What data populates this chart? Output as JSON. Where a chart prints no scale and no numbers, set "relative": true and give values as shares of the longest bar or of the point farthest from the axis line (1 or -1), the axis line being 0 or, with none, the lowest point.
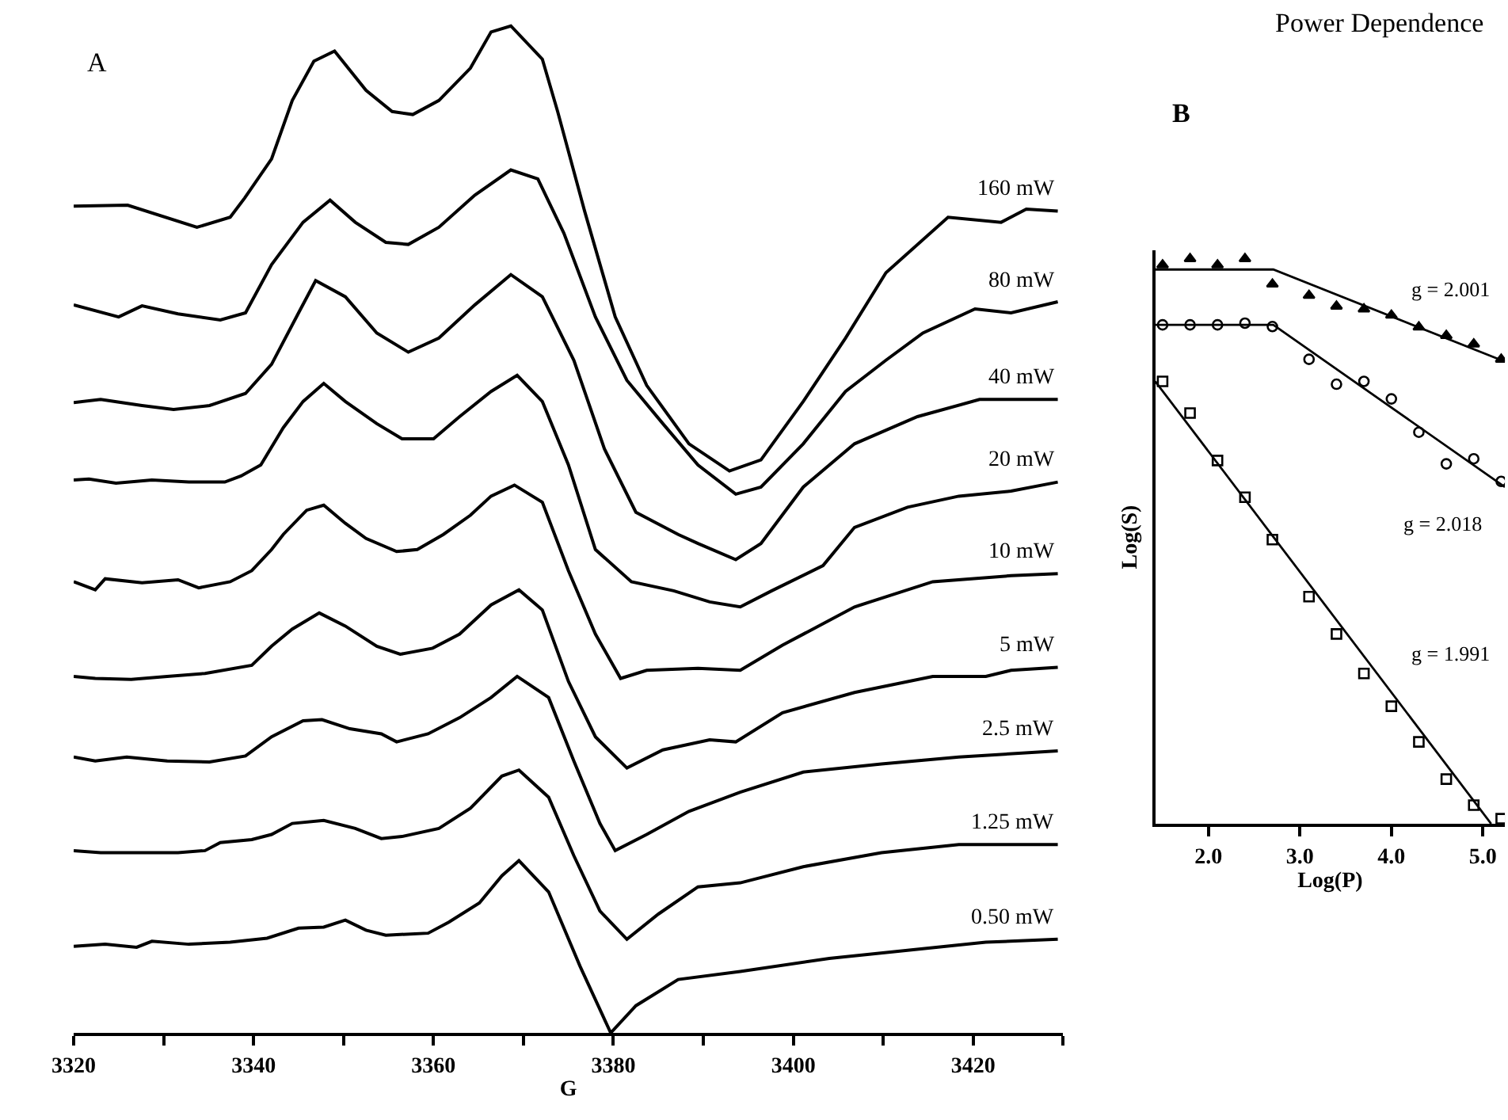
{
  "chart_data": [
    {
      "type": "line",
      "title": "A",
      "xlabel": "G",
      "relative": true,
      "line_style": "solid",
      "xlim": [
        3320,
        3430
      ],
      "xticks": [
        3320,
        {
          "value": 3330,
          "label": null
        },
        3340,
        {
          "value": 3350,
          "label": null
        },
        3360,
        {
          "value": 3370,
          "label": null
        },
        3380,
        {
          "value": 3390,
          "label": null
        },
        3400,
        {
          "value": 3410,
          "label": null
        },
        3420,
        {
          "value": 3430,
          "label": null
        }
      ],
      "series": [
        {
          "name": "160 mW",
          "color": "#000000",
          "x": [
            3320,
            3326,
            3333.7,
            3337.4,
            3339,
            3342,
            3344.3,
            3346.7,
            3349,
            3352.5,
            3355.4,
            3357.7,
            3360.6,
            3364.1,
            3366.4,
            3368.6,
            3372.1,
            3373.8,
            3376.8,
            3380.2,
            3383.7,
            3388.4,
            3392.9,
            3396.4,
            3401.1,
            3405.8,
            3410.3,
            3417.2,
            3423.1,
            3425.9,
            3429.4
          ],
          "values": [
            0.821,
            0.822,
            0.8,
            0.81,
            0.829,
            0.868,
            0.926,
            0.965,
            0.975,
            0.936,
            0.915,
            0.912,
            0.926,
            0.958,
            0.994,
            1.0,
            0.967,
            0.915,
            0.816,
            0.711,
            0.643,
            0.585,
            0.558,
            0.569,
            0.627,
            0.69,
            0.755,
            0.81,
            0.805,
            0.818,
            0.816
          ]
        },
        {
          "name": "80 mW",
          "color": "#000000",
          "x": [
            3320,
            3325,
            3327.6,
            3331.6,
            3336.3,
            3339.1,
            3342,
            3345.5,
            3348.5,
            3351.3,
            3354.7,
            3357.2,
            3360.6,
            3364.6,
            3368.6,
            3371.6,
            3374.5,
            3378,
            3381.5,
            3385.5,
            3389.4,
            3393.6,
            3396.4,
            3401.1,
            3405.8,
            3410.3,
            3414.4,
            3420.2,
            3424.2,
            3429.4
          ],
          "values": [
            0.723,
            0.711,
            0.722,
            0.714,
            0.708,
            0.715,
            0.763,
            0.805,
            0.827,
            0.805,
            0.785,
            0.783,
            0.8,
            0.832,
            0.857,
            0.848,
            0.794,
            0.711,
            0.648,
            0.605,
            0.564,
            0.535,
            0.542,
            0.585,
            0.637,
            0.668,
            0.695,
            0.719,
            0.715,
            0.726
          ]
        },
        {
          "name": "40 mW",
          "color": "#000000",
          "x": [
            3320,
            3323,
            3327.6,
            3331.1,
            3335.1,
            3339.1,
            3342,
            3345,
            3346.9,
            3350.2,
            3353.7,
            3357.2,
            3360.6,
            3364.6,
            3368.6,
            3372.1,
            3375.6,
            3379,
            3382.5,
            3387.2,
            3389.4,
            3393.6,
            3396.4,
            3401.1,
            3406.8,
            3413.8,
            3420.7,
            3429.4
          ],
          "values": [
            0.626,
            0.629,
            0.623,
            0.619,
            0.623,
            0.635,
            0.664,
            0.715,
            0.747,
            0.731,
            0.695,
            0.676,
            0.69,
            0.723,
            0.753,
            0.731,
            0.668,
            0.58,
            0.517,
            0.495,
            0.486,
            0.47,
            0.486,
            0.542,
            0.585,
            0.612,
            0.629,
            0.629
          ]
        },
        {
          "name": "20 mW",
          "color": "#000000",
          "x": [
            3320,
            3321.7,
            3324.7,
            3328.7,
            3332.8,
            3336.8,
            3338.6,
            3340.8,
            3343.3,
            3345.5,
            3347.8,
            3350.2,
            3353.7,
            3356.5,
            3360,
            3362.9,
            3366.4,
            3369.3,
            3372.1,
            3375,
            3378,
            3382,
            3386.7,
            3390.7,
            3394.1,
            3397.6,
            3403.3,
            3406.8,
            3412.7,
            3418.4,
            3424.2,
            3429.4
          ],
          "values": [
            0.549,
            0.55,
            0.546,
            0.549,
            0.547,
            0.547,
            0.553,
            0.564,
            0.601,
            0.627,
            0.645,
            0.627,
            0.605,
            0.59,
            0.59,
            0.612,
            0.637,
            0.653,
            0.627,
            0.564,
            0.48,
            0.448,
            0.439,
            0.428,
            0.423,
            0.439,
            0.464,
            0.502,
            0.522,
            0.533,
            0.538,
            0.547
          ]
        },
        {
          "name": "10 mW",
          "color": "#000000",
          "x": [
            3320,
            3322.4,
            3323.5,
            3327.6,
            3331.6,
            3333.9,
            3337.4,
            3339.8,
            3342,
            3343.3,
            3345.9,
            3347.8,
            3350.2,
            3352.5,
            3355.9,
            3358.2,
            3361.1,
            3364.1,
            3366.4,
            3369,
            3372.1,
            3375,
            3378,
            3380.8,
            3383.7,
            3389.4,
            3394.1,
            3398.8,
            3406.8,
            3415.5,
            3424.2,
            3429.4
          ],
          "values": [
            0.448,
            0.44,
            0.451,
            0.447,
            0.45,
            0.442,
            0.448,
            0.459,
            0.48,
            0.495,
            0.519,
            0.524,
            0.506,
            0.491,
            0.478,
            0.48,
            0.495,
            0.514,
            0.533,
            0.544,
            0.527,
            0.459,
            0.396,
            0.352,
            0.36,
            0.362,
            0.36,
            0.385,
            0.423,
            0.448,
            0.454,
            0.456
          ]
        },
        {
          "name": "5 mW",
          "color": "#000000",
          "x": [
            3320,
            3322.4,
            3326.4,
            3330.4,
            3334.6,
            3339.8,
            3342,
            3344.3,
            3347.3,
            3350.2,
            3353.7,
            3356.3,
            3359.9,
            3362.9,
            3366.4,
            3369.5,
            3372.1,
            3375,
            3378,
            3381.5,
            3385.5,
            3390.7,
            3393.6,
            3398.8,
            3406.8,
            3415.5,
            3421.4,
            3424.2,
            3429.4
          ],
          "values": [
            0.354,
            0.352,
            0.351,
            0.354,
            0.357,
            0.365,
            0.384,
            0.401,
            0.417,
            0.404,
            0.384,
            0.376,
            0.382,
            0.396,
            0.425,
            0.44,
            0.42,
            0.349,
            0.294,
            0.263,
            0.281,
            0.291,
            0.289,
            0.318,
            0.338,
            0.354,
            0.354,
            0.36,
            0.363
          ]
        },
        {
          "name": "2.5 mW",
          "color": "#000000",
          "x": [
            3320,
            3322.4,
            3325.9,
            3330.4,
            3335.1,
            3339.1,
            3342,
            3345.5,
            3347.6,
            3350.7,
            3354.2,
            3355.9,
            3359.4,
            3362.9,
            3366.4,
            3369.3,
            3372.8,
            3375.6,
            3378.5,
            3380.2,
            3383.7,
            3388.4,
            3394.1,
            3401.1,
            3409.8,
            3418.4,
            3429.4
          ],
          "values": [
            0.274,
            0.27,
            0.274,
            0.27,
            0.269,
            0.275,
            0.294,
            0.31,
            0.311,
            0.302,
            0.297,
            0.289,
            0.297,
            0.313,
            0.333,
            0.354,
            0.333,
            0.27,
            0.208,
            0.181,
            0.197,
            0.22,
            0.239,
            0.259,
            0.267,
            0.274,
            0.28
          ]
        },
        {
          "name": "1.25 mW",
          "color": "#000000",
          "x": [
            3320,
            3323,
            3327,
            3331.6,
            3334.6,
            3336.3,
            3339.8,
            3342,
            3344.3,
            3347.8,
            3351.3,
            3354.2,
            3356.5,
            3360.6,
            3364.1,
            3367.6,
            3369.5,
            3372.8,
            3375.6,
            3378.5,
            3381.5,
            3385,
            3389.4,
            3394.1,
            3401.1,
            3409.8,
            3418.4,
            3429.4
          ],
          "values": [
            0.181,
            0.179,
            0.179,
            0.179,
            0.181,
            0.189,
            0.192,
            0.197,
            0.208,
            0.211,
            0.203,
            0.193,
            0.195,
            0.203,
            0.223,
            0.255,
            0.261,
            0.234,
            0.176,
            0.121,
            0.093,
            0.118,
            0.145,
            0.149,
            0.165,
            0.179,
            0.187,
            0.187
          ]
        },
        {
          "name": "0.50 mW",
          "color": "#000000",
          "x": [
            3320,
            3323.5,
            3327,
            3328.7,
            3332.8,
            3337.4,
            3341.5,
            3345,
            3347.8,
            3350.2,
            3352.5,
            3354.7,
            3359.4,
            3361.7,
            3365.1,
            3367.6,
            3369.5,
            3372.8,
            3376.3,
            3379.7,
            3382.5,
            3387.2,
            3394.1,
            3404,
            3412.7,
            3421.4,
            3429.4
          ],
          "values": [
            0.086,
            0.088,
            0.085,
            0.091,
            0.088,
            0.09,
            0.094,
            0.104,
            0.105,
            0.112,
            0.102,
            0.097,
            0.099,
            0.11,
            0.129,
            0.156,
            0.171,
            0.14,
            0.066,
            0,
            0.027,
            0.053,
            0.061,
            0.074,
            0.082,
            0.09,
            0.093
          ]
        }
      ]
    },
    {
      "type": "scatter",
      "title": "Power Dependence",
      "subtitle": "B",
      "xlabel": "Log(P)",
      "ylabel": "Log(S)",
      "relative": true,
      "xlim": [
        1.42,
        5.24
      ],
      "xticks": [
        {
          "value": 2,
          "label": "2.0"
        },
        {
          "value": 3,
          "label": "3.0"
        },
        {
          "value": 4,
          "label": "4.0"
        },
        {
          "value": 5,
          "label": "5.0"
        }
      ],
      "annotations": [
        "g = 2.001",
        "g = 2.018",
        "g = 1.991"
      ],
      "series": [
        {
          "type": "scatter",
          "marker": "triangle",
          "color": "#000000",
          "x": [
            1.5,
            1.8,
            2.1,
            2.4,
            2.7,
            3.1,
            3.4,
            3.7,
            4.0,
            4.3,
            4.6,
            4.9,
            5.2
          ],
          "values": [
            0.989,
            1.0,
            0.989,
            1.0,
            0.955,
            0.935,
            0.916,
            0.911,
            0.9,
            0.879,
            0.864,
            0.849,
            0.822
          ]
        },
        {
          "type": "scatter",
          "marker": "circle",
          "color": "#000000",
          "x": [
            1.5,
            1.8,
            2.1,
            2.4,
            2.7,
            3.1,
            3.4,
            3.7,
            4.0,
            4.3,
            4.6,
            4.9,
            5.2
          ],
          "values": [
            0.883,
            0.883,
            0.883,
            0.886,
            0.88,
            0.822,
            0.778,
            0.783,
            0.752,
            0.693,
            0.637,
            0.646,
            0.606
          ]
        },
        {
          "type": "scatter",
          "marker": "square",
          "color": "#000000",
          "x": [
            1.5,
            1.8,
            2.1,
            2.4,
            2.7,
            3.1,
            3.4,
            3.7,
            4.0,
            4.3,
            4.6,
            4.9,
            5.2
          ],
          "values": [
            0.783,
            0.727,
            0.643,
            0.578,
            0.503,
            0.402,
            0.336,
            0.266,
            0.208,
            0.145,
            0.079,
            0.033,
            0.009
          ]
        },
        {
          "type": "line",
          "line_style": "solid",
          "color": "#000000",
          "x": [
            1.42,
            2.71,
            5.24
          ],
          "values": [
            0.981,
            0.981,
            0.818
          ]
        },
        {
          "type": "line",
          "line_style": "solid",
          "color": "#000000",
          "x": [
            1.42,
            2.71,
            5.24
          ],
          "values": [
            0.883,
            0.883,
            0.596
          ]
        },
        {
          "type": "line",
          "line_style": "solid",
          "color": "#000000",
          "x": [
            1.42,
            5.09
          ],
          "values": [
            0.783,
            0
          ]
        }
      ]
    }
  ]
}
